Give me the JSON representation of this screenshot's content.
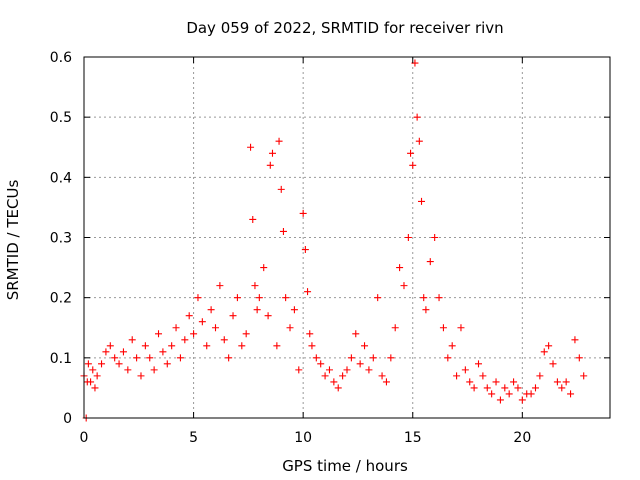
{
  "chart_data": {
    "type": "scatter",
    "title": "Day 059 of 2022, SRMTID for receiver rivn",
    "xlabel": "GPS time / hours",
    "ylabel": "SRMTID / TECUs",
    "xlim": [
      0,
      24
    ],
    "ylim": [
      0,
      0.6
    ],
    "xticks": [
      0,
      5,
      10,
      15,
      20
    ],
    "xtick_labels": [
      "0",
      "5",
      "10",
      "15",
      "20"
    ],
    "yticks": [
      0,
      0.1,
      0.2,
      0.3,
      0.4,
      0.5,
      0.6
    ],
    "ytick_labels": [
      "0",
      "0.1",
      "0.2",
      "0.3",
      "0.4",
      "0.5",
      "0.6"
    ],
    "grid": true,
    "marker": "plus",
    "color": "#ff0000",
    "series": [
      {
        "name": "SRMTID",
        "x": [
          0.0,
          0.1,
          0.15,
          0.2,
          0.3,
          0.4,
          0.5,
          0.6,
          0.8,
          1.0,
          1.2,
          1.4,
          1.6,
          1.8,
          2.0,
          2.2,
          2.4,
          2.6,
          2.8,
          3.0,
          3.2,
          3.4,
          3.6,
          3.8,
          4.0,
          4.2,
          4.4,
          4.6,
          4.8,
          5.0,
          5.2,
          5.4,
          5.6,
          5.8,
          6.0,
          6.2,
          6.4,
          6.6,
          6.8,
          7.0,
          7.2,
          7.4,
          7.6,
          7.7,
          7.8,
          7.9,
          8.0,
          8.2,
          8.4,
          8.5,
          8.6,
          8.8,
          8.9,
          9.0,
          9.1,
          9.2,
          9.4,
          9.6,
          9.8,
          10.0,
          10.1,
          10.2,
          10.3,
          10.4,
          10.6,
          10.8,
          11.0,
          11.2,
          11.4,
          11.6,
          11.8,
          12.0,
          12.2,
          12.4,
          12.6,
          12.8,
          13.0,
          13.2,
          13.4,
          13.6,
          13.8,
          14.0,
          14.2,
          14.4,
          14.6,
          14.8,
          14.9,
          15.0,
          15.1,
          15.2,
          15.3,
          15.4,
          15.5,
          15.6,
          15.8,
          16.0,
          16.2,
          16.4,
          16.6,
          16.8,
          17.0,
          17.2,
          17.4,
          17.6,
          17.8,
          18.0,
          18.2,
          18.4,
          18.6,
          18.8,
          19.0,
          19.2,
          19.4,
          19.6,
          19.8,
          20.0,
          20.2,
          20.4,
          20.6,
          20.8,
          21.0,
          21.2,
          21.4,
          21.6,
          21.8,
          22.0,
          22.2,
          22.4,
          22.6,
          22.8
        ],
        "y": [
          0.07,
          0.0,
          0.06,
          0.09,
          0.06,
          0.08,
          0.05,
          0.07,
          0.09,
          0.11,
          0.12,
          0.1,
          0.09,
          0.11,
          0.08,
          0.13,
          0.1,
          0.07,
          0.12,
          0.1,
          0.08,
          0.14,
          0.11,
          0.09,
          0.12,
          0.15,
          0.1,
          0.13,
          0.17,
          0.14,
          0.2,
          0.16,
          0.12,
          0.18,
          0.15,
          0.22,
          0.13,
          0.1,
          0.17,
          0.2,
          0.12,
          0.14,
          0.45,
          0.33,
          0.22,
          0.18,
          0.2,
          0.25,
          0.17,
          0.42,
          0.44,
          0.12,
          0.46,
          0.38,
          0.31,
          0.2,
          0.15,
          0.18,
          0.08,
          0.34,
          0.28,
          0.21,
          0.14,
          0.12,
          0.1,
          0.09,
          0.07,
          0.08,
          0.06,
          0.05,
          0.07,
          0.08,
          0.1,
          0.14,
          0.09,
          0.12,
          0.08,
          0.1,
          0.2,
          0.07,
          0.06,
          0.1,
          0.15,
          0.25,
          0.22,
          0.3,
          0.44,
          0.42,
          0.59,
          0.5,
          0.46,
          0.36,
          0.2,
          0.18,
          0.26,
          0.3,
          0.2,
          0.15,
          0.1,
          0.12,
          0.07,
          0.15,
          0.08,
          0.06,
          0.05,
          0.09,
          0.07,
          0.05,
          0.04,
          0.06,
          0.03,
          0.05,
          0.04,
          0.06,
          0.05,
          0.03,
          0.04,
          0.04,
          0.05,
          0.07,
          0.11,
          0.12,
          0.09,
          0.06,
          0.05,
          0.06,
          0.04,
          0.13,
          0.1,
          0.07
        ]
      }
    ]
  }
}
